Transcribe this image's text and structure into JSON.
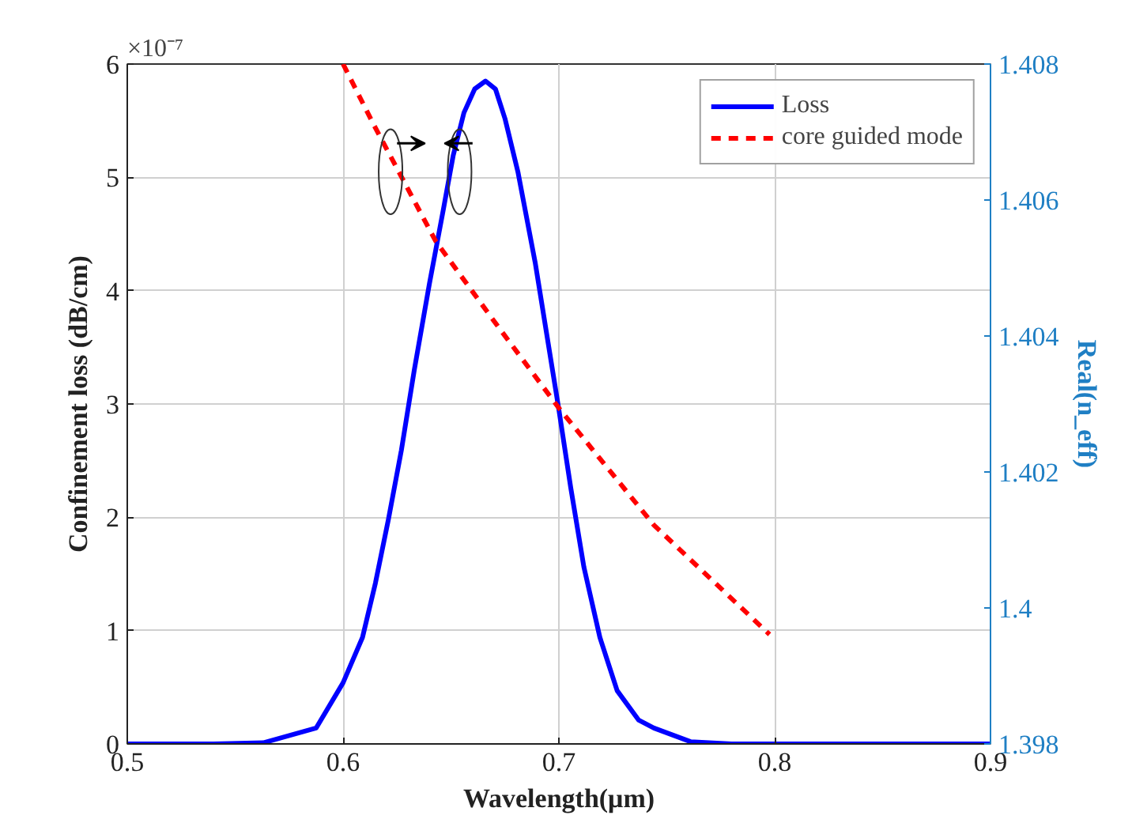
{
  "chart_data": {
    "type": "line",
    "xlabel": "Wavelength(μm)",
    "ylabel": "Confinement loss (dB/cm)",
    "y2label": "Real(n_eff)",
    "annotations": [
      "×10⁻⁷"
    ],
    "xlim": [
      0.5,
      0.9
    ],
    "xticks": [
      0.5,
      0.6,
      0.7,
      0.8,
      0.9
    ],
    "ylim": [
      0,
      6
    ],
    "yticks": [
      0,
      1,
      2,
      3,
      4,
      5,
      6
    ],
    "y2lim": [
      1.398,
      1.408
    ],
    "y2ticks": [
      1.398,
      {
        "value": 1.4,
        "label": "1.4"
      },
      1.402,
      1.404,
      1.406,
      1.408
    ],
    "grid": true,
    "legend": "top right",
    "series": [
      {
        "name": "Loss",
        "color": "#0000ff",
        "line_style": "solid",
        "x": [
          0.5,
          0.54,
          0.563,
          0.5875,
          0.6,
          0.609,
          0.615,
          0.621,
          0.627,
          0.633,
          0.64,
          0.6465,
          0.651,
          0.656,
          0.661,
          0.666,
          0.6706,
          0.675,
          0.681,
          0.689,
          0.695,
          0.7,
          0.7055,
          0.7116,
          0.719,
          0.727,
          0.737,
          0.744,
          0.761,
          0.78,
          0.853,
          0.9
        ],
        "values": [
          0,
          0,
          0.01,
          0.14,
          0.54,
          0.94,
          1.42,
          1.98,
          2.59,
          3.3,
          4.06,
          4.72,
          5.19,
          5.57,
          5.78,
          5.85,
          5.78,
          5.52,
          5.05,
          4.25,
          3.54,
          2.95,
          2.26,
          1.56,
          0.94,
          0.47,
          0.21,
          0.14,
          0.02,
          0,
          0,
          0
        ]
      },
      {
        "name": "core guided mode",
        "color": "#ff0000",
        "line_style": "dashed",
        "axis": "y2",
        "x": [
          0.6,
          0.614,
          0.643,
          0.672,
          0.7,
          0.744,
          0.7976
        ],
        "values": [
          1.408,
          1.40712,
          1.40539,
          1.40413,
          1.40294,
          1.40122,
          1.39961
        ]
      }
    ]
  }
}
